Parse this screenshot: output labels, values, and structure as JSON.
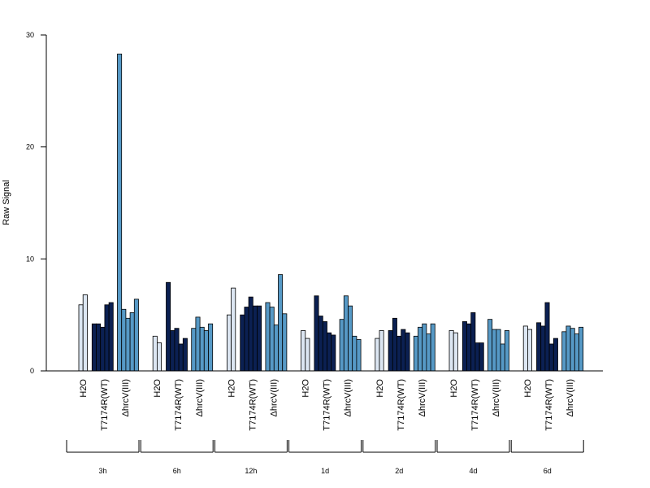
{
  "chart_data": {
    "type": "bar",
    "title": "",
    "ylabel": "Raw Signal",
    "xlabel": "",
    "ylim": [
      0,
      30
    ],
    "yticks": [
      0,
      10,
      20,
      30
    ],
    "colors": {
      "H2O": "#dce6f2",
      "T7174R(WT)": "#0b2052",
      "ΔhrcV(III)": "#5699c6"
    },
    "condition_labels": [
      "H2O",
      "T7174R(WT)",
      "ΔhrcV(III)"
    ],
    "groups": [
      {
        "time": "3h",
        "conditions": [
          {
            "name": "H2O",
            "values": [
              5.9,
              6.8
            ]
          },
          {
            "name": "T7174R(WT)",
            "values": [
              4.2,
              4.2,
              3.9,
              5.9,
              6.1
            ]
          },
          {
            "name": "ΔhrcV(III)",
            "values": [
              28.3,
              5.5,
              4.7,
              5.2,
              6.4
            ]
          }
        ]
      },
      {
        "time": "6h",
        "conditions": [
          {
            "name": "H2O",
            "values": [
              3.1,
              2.5
            ]
          },
          {
            "name": "T7174R(WT)",
            "values": [
              7.9,
              3.6,
              3.8,
              2.4,
              2.9
            ]
          },
          {
            "name": "ΔhrcV(III)",
            "values": [
              3.8,
              4.8,
              3.9,
              3.6,
              4.2
            ]
          }
        ]
      },
      {
        "time": "12h",
        "conditions": [
          {
            "name": "H2O",
            "values": [
              5.0,
              7.4
            ]
          },
          {
            "name": "T7174R(WT)",
            "values": [
              5.0,
              5.7,
              6.6,
              5.8,
              5.8
            ]
          },
          {
            "name": "ΔhrcV(III)",
            "values": [
              6.1,
              5.7,
              4.1,
              8.6,
              5.1
            ]
          }
        ]
      },
      {
        "time": "1d",
        "conditions": [
          {
            "name": "H2O",
            "values": [
              3.6,
              2.9
            ]
          },
          {
            "name": "T7174R(WT)",
            "values": [
              6.7,
              4.9,
              4.4,
              3.4,
              3.2
            ]
          },
          {
            "name": "ΔhrcV(III)",
            "values": [
              4.6,
              6.7,
              5.8,
              3.1,
              2.8
            ]
          }
        ]
      },
      {
        "time": "2d",
        "conditions": [
          {
            "name": "H2O",
            "values": [
              2.9,
              3.6
            ]
          },
          {
            "name": "T7174R(WT)",
            "values": [
              3.6,
              4.7,
              3.1,
              3.7,
              3.4
            ]
          },
          {
            "name": "ΔhrcV(III)",
            "values": [
              3.1,
              3.9,
              4.2,
              3.3,
              4.2
            ]
          }
        ]
      },
      {
        "time": "4d",
        "conditions": [
          {
            "name": "H2O",
            "values": [
              3.6,
              3.4
            ]
          },
          {
            "name": "T7174R(WT)",
            "values": [
              4.4,
              4.2,
              5.2,
              2.5,
              2.5
            ]
          },
          {
            "name": "ΔhrcV(III)",
            "values": [
              4.6,
              3.7,
              3.7,
              2.4,
              3.6
            ]
          }
        ]
      },
      {
        "time": "6d",
        "conditions": [
          {
            "name": "H2O",
            "values": [
              4.0,
              3.7
            ]
          },
          {
            "name": "T7174R(WT)",
            "values": [
              4.3,
              4.0,
              6.1,
              2.4,
              2.9
            ]
          },
          {
            "name": "ΔhrcV(III)",
            "values": [
              3.5,
              4.0,
              3.8,
              3.3,
              3.9
            ]
          }
        ]
      }
    ]
  }
}
